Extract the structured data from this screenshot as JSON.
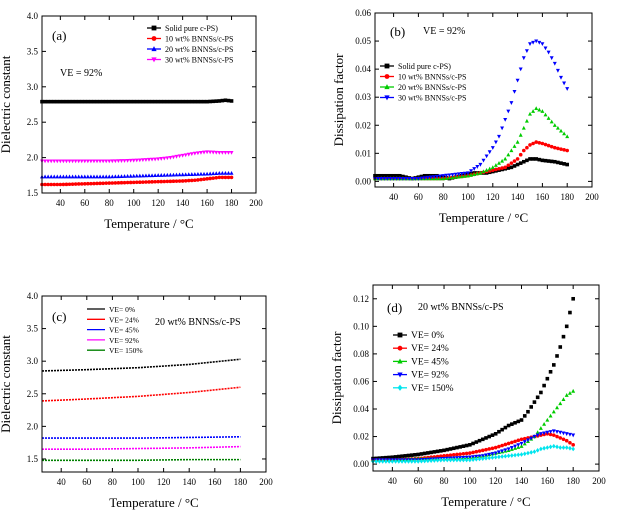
{
  "chart_data": [
    {
      "type": "scatter",
      "panel_label": "(a)",
      "annotation": "VE = 92%",
      "xlabel": "Temperature / °C",
      "ylabel": "Dielectric constant",
      "xlim": [
        25,
        200
      ],
      "ylim": [
        1.5,
        4.0
      ],
      "xticks": [
        40,
        60,
        80,
        100,
        120,
        140,
        160,
        180,
        200
      ],
      "yticks": [
        1.5,
        2.0,
        2.5,
        3.0,
        3.5,
        4.0
      ],
      "ytick_labels": [
        "1.5",
        "2.0",
        "2.5",
        "3.0",
        "3.5",
        "4.0"
      ],
      "legend_position": "top-right",
      "series": [
        {
          "name": "Solid pure c-PS)",
          "color": "#000000",
          "marker": "square",
          "x": [
            25,
            40,
            60,
            80,
            100,
            120,
            140,
            160,
            170,
            175,
            180
          ],
          "y": [
            2.79,
            2.79,
            2.79,
            2.79,
            2.79,
            2.79,
            2.79,
            2.79,
            2.8,
            2.81,
            2.8
          ]
        },
        {
          "name": "10 wt% BNNSs/c-PS",
          "color": "#ff0000",
          "marker": "circle",
          "x": [
            25,
            40,
            60,
            80,
            100,
            120,
            140,
            150,
            160,
            170,
            180
          ],
          "y": [
            1.62,
            1.62,
            1.63,
            1.64,
            1.65,
            1.66,
            1.67,
            1.68,
            1.7,
            1.72,
            1.72
          ]
        },
        {
          "name": "20 wt% BNNSs/c-PS",
          "color": "#0000ff",
          "marker": "triangle-up",
          "x": [
            25,
            40,
            60,
            80,
            100,
            120,
            140,
            160,
            170,
            180
          ],
          "y": [
            1.73,
            1.73,
            1.73,
            1.73,
            1.74,
            1.75,
            1.76,
            1.77,
            1.78,
            1.78
          ]
        },
        {
          "name": "30 wt% BNNSs/c-PS",
          "color": "#ff00ff",
          "marker": "triangle-down",
          "x": [
            25,
            40,
            60,
            80,
            100,
            120,
            130,
            140,
            150,
            160,
            170,
            180
          ],
          "y": [
            1.95,
            1.95,
            1.95,
            1.95,
            1.96,
            1.98,
            2.0,
            2.03,
            2.06,
            2.08,
            2.07,
            2.07
          ]
        }
      ]
    },
    {
      "type": "scatter",
      "panel_label": "(b)",
      "annotation": "VE = 92%",
      "xlabel": "Temperature / °C",
      "ylabel": "Dissipation factor",
      "xlim": [
        25,
        200
      ],
      "ylim": [
        -0.002,
        0.06
      ],
      "xticks": [
        40,
        60,
        80,
        100,
        120,
        140,
        160,
        180,
        200
      ],
      "yticks": [
        0,
        0.01,
        0.02,
        0.03,
        0.04,
        0.05,
        0.06
      ],
      "ytick_labels": [
        "0.00",
        "0.01",
        "0.02",
        "0.03",
        "0.04",
        "0.05",
        "0.06"
      ],
      "legend_position": "center-left",
      "series": [
        {
          "name": "Solid pure c-PS)",
          "color": "#000000",
          "marker": "square",
          "x": [
            25,
            35,
            45,
            55,
            65,
            75,
            85,
            95,
            105,
            115,
            125,
            135,
            145,
            150,
            155,
            160,
            170,
            180
          ],
          "y": [
            0.002,
            0.002,
            0.002,
            0.001,
            0.002,
            0.002,
            0.001,
            0.002,
            0.003,
            0.003,
            0.004,
            0.005,
            0.007,
            0.008,
            0.008,
            0.0075,
            0.007,
            0.006
          ]
        },
        {
          "name": "10 wt% BNNSs/c-PS",
          "color": "#ff0000",
          "marker": "circle",
          "x": [
            25,
            40,
            60,
            80,
            100,
            110,
            120,
            130,
            140,
            145,
            150,
            155,
            160,
            170,
            180
          ],
          "y": [
            0.001,
            0.001,
            0.001,
            0.001,
            0.002,
            0.003,
            0.004,
            0.005,
            0.008,
            0.011,
            0.013,
            0.014,
            0.0135,
            0.012,
            0.011
          ]
        },
        {
          "name": "20 wt% BNNSs/c-PS",
          "color": "#00cc00",
          "marker": "triangle-up",
          "x": [
            25,
            40,
            60,
            80,
            100,
            110,
            120,
            130,
            140,
            145,
            150,
            155,
            160,
            170,
            180
          ],
          "y": [
            0.001,
            0.001,
            0.001,
            0.001,
            0.002,
            0.003,
            0.005,
            0.008,
            0.014,
            0.019,
            0.024,
            0.026,
            0.025,
            0.02,
            0.016
          ]
        },
        {
          "name": "30 wt% BNNSs/c-PS",
          "color": "#0000ff",
          "marker": "triangle-down",
          "x": [
            25,
            40,
            60,
            80,
            100,
            110,
            120,
            125,
            130,
            135,
            140,
            145,
            150,
            155,
            160,
            165,
            170,
            175,
            180
          ],
          "y": [
            0.001,
            0.001,
            0.001,
            0.002,
            0.003,
            0.006,
            0.012,
            0.016,
            0.022,
            0.028,
            0.036,
            0.044,
            0.049,
            0.05,
            0.049,
            0.046,
            0.042,
            0.037,
            0.033
          ]
        }
      ]
    },
    {
      "type": "line",
      "panel_label": "(c)",
      "annotation": "20 wt% BNNSs/c-PS",
      "xlabel": "Temperature / °C",
      "ylabel": "Dielectric constant",
      "xlim": [
        25,
        200
      ],
      "ylim": [
        1.3,
        4.0
      ],
      "xticks": [
        40,
        60,
        80,
        100,
        120,
        140,
        160,
        180,
        200
      ],
      "yticks": [
        1.5,
        2.0,
        2.5,
        3.0,
        3.5,
        4.0
      ],
      "ytick_labels": [
        "1.5",
        "2.0",
        "2.5",
        "3.0",
        "3.5",
        "4.0"
      ],
      "legend_position": "top-left",
      "series": [
        {
          "name": "VE= 0%",
          "color": "#000000",
          "x": [
            25,
            60,
            100,
            140,
            180
          ],
          "y": [
            2.85,
            2.87,
            2.9,
            2.95,
            3.03
          ]
        },
        {
          "name": "VE= 24%",
          "color": "#ff0000",
          "x": [
            25,
            60,
            100,
            140,
            180
          ],
          "y": [
            2.39,
            2.42,
            2.46,
            2.52,
            2.6
          ]
        },
        {
          "name": "VE= 45%",
          "color": "#0000ff",
          "x": [
            25,
            60,
            100,
            140,
            180
          ],
          "y": [
            1.82,
            1.82,
            1.82,
            1.83,
            1.84
          ]
        },
        {
          "name": "VE= 92%",
          "color": "#ff00ff",
          "x": [
            25,
            60,
            100,
            140,
            180
          ],
          "y": [
            1.65,
            1.65,
            1.66,
            1.67,
            1.69
          ]
        },
        {
          "name": "VE= 150%",
          "color": "#008000",
          "x": [
            25,
            60,
            100,
            140,
            180
          ],
          "y": [
            1.48,
            1.48,
            1.48,
            1.49,
            1.49
          ]
        }
      ]
    },
    {
      "type": "scatter",
      "panel_label": "(d)",
      "annotation": "20 wt% BNNSs/c-PS",
      "xlabel": "Temperature / °C",
      "ylabel": "Dissipation factor",
      "xlim": [
        25,
        200
      ],
      "ylim": [
        -0.005,
        0.13
      ],
      "xticks": [
        40,
        60,
        80,
        100,
        120,
        140,
        160,
        180,
        200
      ],
      "yticks": [
        0,
        0.02,
        0.04,
        0.06,
        0.08,
        0.1,
        0.12
      ],
      "ytick_labels": [
        "0.00",
        "0.02",
        "0.04",
        "0.06",
        "0.08",
        "0.10",
        "0.12"
      ],
      "legend_position": "center-left",
      "series": [
        {
          "name": "VE= 0%",
          "color": "#000000",
          "marker": "square",
          "x": [
            25,
            40,
            60,
            80,
            100,
            110,
            120,
            130,
            135,
            140,
            145,
            150,
            155,
            160,
            165,
            170,
            175,
            180
          ],
          "y": [
            0.004,
            0.005,
            0.007,
            0.01,
            0.014,
            0.018,
            0.022,
            0.028,
            0.03,
            0.032,
            0.038,
            0.045,
            0.052,
            0.062,
            0.072,
            0.085,
            0.1,
            0.12
          ]
        },
        {
          "name": "VE= 24%",
          "color": "#ff0000",
          "marker": "circle",
          "x": [
            25,
            40,
            60,
            80,
            100,
            110,
            120,
            130,
            140,
            150,
            160,
            165,
            170,
            175,
            180
          ],
          "y": [
            0.003,
            0.003,
            0.004,
            0.006,
            0.008,
            0.01,
            0.012,
            0.015,
            0.018,
            0.02,
            0.022,
            0.021,
            0.019,
            0.017,
            0.014
          ]
        },
        {
          "name": "VE= 45%",
          "color": "#00cc00",
          "marker": "triangle-up",
          "x": [
            25,
            40,
            60,
            80,
            100,
            110,
            120,
            130,
            140,
            150,
            155,
            160,
            165,
            170,
            175,
            180
          ],
          "y": [
            0.003,
            0.003,
            0.004,
            0.004,
            0.005,
            0.006,
            0.008,
            0.01,
            0.013,
            0.02,
            0.026,
            0.032,
            0.038,
            0.044,
            0.05,
            0.053
          ]
        },
        {
          "name": "VE= 92%",
          "color": "#0000ff",
          "marker": "triangle-down",
          "x": [
            25,
            40,
            60,
            80,
            100,
            110,
            120,
            130,
            140,
            150,
            155,
            160,
            165,
            170,
            175,
            180
          ],
          "y": [
            0.003,
            0.003,
            0.003,
            0.004,
            0.005,
            0.006,
            0.008,
            0.011,
            0.015,
            0.02,
            0.022,
            0.023,
            0.024,
            0.023,
            0.022,
            0.021
          ]
        },
        {
          "name": "VE= 150%",
          "color": "#00e5ee",
          "marker": "diamond",
          "x": [
            25,
            40,
            60,
            80,
            100,
            110,
            120,
            130,
            140,
            150,
            155,
            160,
            165,
            170,
            175,
            180
          ],
          "y": [
            0.002,
            0.002,
            0.002,
            0.003,
            0.003,
            0.004,
            0.005,
            0.006,
            0.007,
            0.009,
            0.011,
            0.012,
            0.013,
            0.012,
            0.012,
            0.011
          ]
        }
      ]
    }
  ]
}
